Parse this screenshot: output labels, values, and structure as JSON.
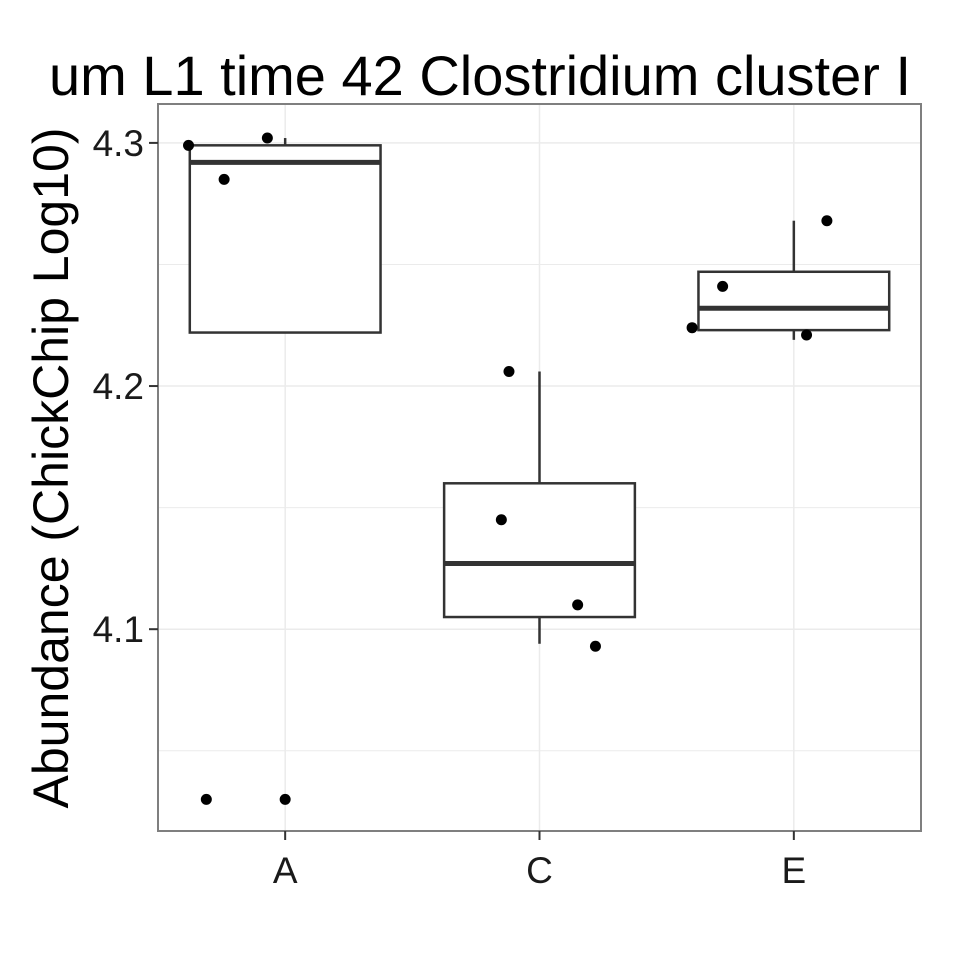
{
  "chart_data": {
    "type": "box",
    "title": "um L1 time 42 Clostridium cluster I",
    "xlabel": "",
    "ylabel": "Abundance (ChickChip Log10)",
    "ylim": [
      4.017,
      4.316
    ],
    "y_ticks": [
      4.1,
      4.2,
      4.3
    ],
    "y_tick_labels": [
      "4.1",
      "4.2",
      "4.3"
    ],
    "grid": true,
    "categories": [
      "A",
      "C",
      "E"
    ],
    "boxes": [
      {
        "category": "A",
        "lower_whisker": 4.222,
        "q1": 4.222,
        "median": 4.292,
        "q3": 4.299,
        "upper_whisker": 4.302
      },
      {
        "category": "C",
        "lower_whisker": 4.094,
        "q1": 4.105,
        "median": 4.127,
        "q3": 4.16,
        "upper_whisker": 4.206
      },
      {
        "category": "E",
        "lower_whisker": 4.219,
        "q1": 4.223,
        "median": 4.232,
        "q3": 4.247,
        "upper_whisker": 4.268
      }
    ],
    "points": [
      {
        "category": "A",
        "jitter": -0.38,
        "y": 4.299
      },
      {
        "category": "A",
        "jitter": -0.24,
        "y": 4.285
      },
      {
        "category": "A",
        "jitter": -0.07,
        "y": 4.302
      },
      {
        "category": "A",
        "jitter": -0.31,
        "y": 4.03
      },
      {
        "category": "A",
        "jitter": 0.0,
        "y": 4.03
      },
      {
        "category": "C",
        "jitter": -0.12,
        "y": 4.206
      },
      {
        "category": "C",
        "jitter": -0.15,
        "y": 4.145
      },
      {
        "category": "C",
        "jitter": 0.15,
        "y": 4.11
      },
      {
        "category": "C",
        "jitter": 0.22,
        "y": 4.093
      },
      {
        "category": "E",
        "jitter": -0.4,
        "y": 4.224
      },
      {
        "category": "E",
        "jitter": -0.28,
        "y": 4.241
      },
      {
        "category": "E",
        "jitter": 0.05,
        "y": 4.221
      },
      {
        "category": "E",
        "jitter": 0.13,
        "y": 4.268
      }
    ]
  },
  "colors": {
    "panel_border": "#7f7f7f",
    "grid": "#ebebeb",
    "box_stroke": "#333333",
    "point": "#000000",
    "text": "#000000"
  }
}
